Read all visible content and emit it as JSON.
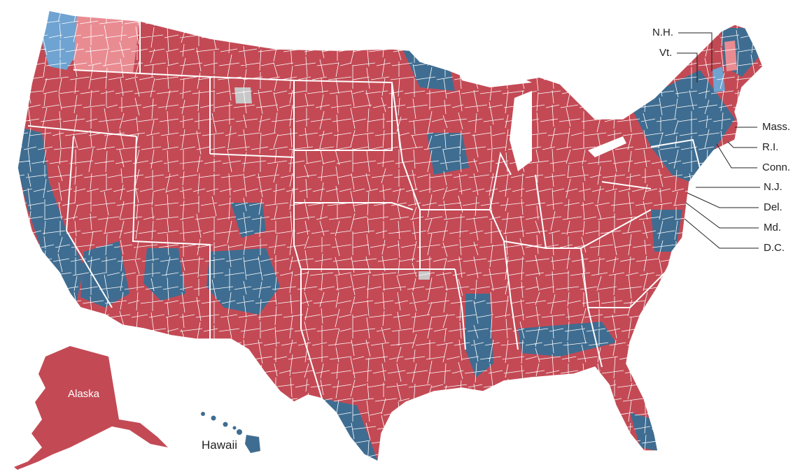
{
  "colors": {
    "red": "#c34a55",
    "blue": "#3f6d91",
    "light_red": "#e98c92",
    "light_blue": "#6fa3d1",
    "gray": "#c8c8c8",
    "border": "#ffffff",
    "leader": "#222222"
  },
  "labels": {
    "alaska": "Alaska",
    "hawaii": "Hawaii",
    "nh": "N.H.",
    "vt": "Vt.",
    "mass": "Mass.",
    "ri": "R.I.",
    "conn": "Conn.",
    "nj": "N.J.",
    "del": "Del.",
    "md": "Md.",
    "dc": "D.C."
  }
}
